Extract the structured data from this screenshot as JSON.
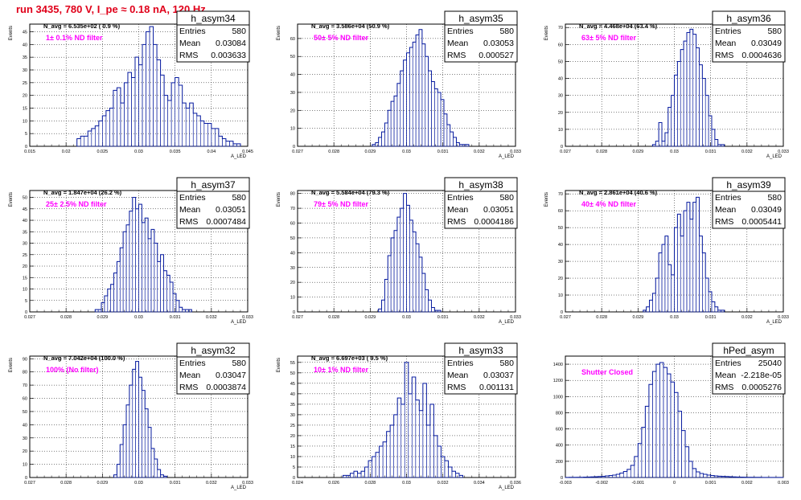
{
  "title": "run 3435,   780 V, I_pe ≈ 0.18 nA, 120 Hz",
  "chart_data": [
    {
      "type": "bar",
      "name": "h_asym34",
      "navg": "N_avg = 6.535e+02 ( 0.9 %)",
      "filter": "1± 0.1% ND filter",
      "stats": {
        "entries": "580",
        "mean": "0.03084",
        "rms": "0.003633"
      },
      "xlabel": "A_LED",
      "ylabel": "Events",
      "xlim": [
        0.015,
        0.045
      ],
      "ylim": [
        0,
        48
      ],
      "xticks": [
        "0.015",
        "0.02",
        "0.025",
        "0.03",
        "0.035",
        "0.04",
        "0.045"
      ],
      "yticks": [
        0,
        5,
        10,
        15,
        20,
        25,
        30,
        35,
        40,
        45
      ],
      "bin_start": 0.0215,
      "bin_width": 0.0005,
      "values": [
        3,
        4,
        4,
        6,
        7,
        8,
        10,
        12,
        14,
        15,
        22,
        23,
        17,
        25,
        29,
        27,
        35,
        32,
        40,
        45,
        47,
        40,
        34,
        28,
        20,
        18,
        25,
        27,
        24,
        17,
        15,
        17,
        13,
        12,
        10,
        9,
        9,
        7,
        7,
        4,
        3,
        2,
        2,
        1,
        1
      ]
    },
    {
      "type": "bar",
      "name": "h_asym35",
      "navg": "N_avg = 3.586e+04 (50.9 %)",
      "filter": "50± 5% ND filter",
      "stats": {
        "entries": "580",
        "mean": "0.03053",
        "rms": "0.000527"
      },
      "xlabel": "A_LED",
      "ylabel": "Events",
      "xlim": [
        0.0265,
        0.0335
      ],
      "ylim": [
        0,
        68
      ],
      "xticks": [
        "0.027",
        "0.028",
        "0.029",
        "0.03",
        "0.031",
        "0.032",
        "0.033"
      ],
      "yticks": [
        0,
        10,
        20,
        30,
        40,
        50,
        60
      ],
      "bin_start": 0.0289,
      "bin_width": 0.0001,
      "values": [
        1,
        2,
        5,
        8,
        13,
        20,
        25,
        28,
        35,
        42,
        48,
        52,
        55,
        58,
        62,
        65,
        57,
        50,
        42,
        36,
        32,
        30,
        26,
        18,
        12,
        8,
        5,
        2,
        1,
        1,
        1
      ]
    },
    {
      "type": "bar",
      "name": "h_asym36",
      "navg": "N_avg = 4.468e+04 (63.4 %)",
      "filter": "63± 5% ND filter",
      "stats": {
        "entries": "580",
        "mean": "0.03049",
        "rms": "0.0004636"
      },
      "xlabel": "A_LED",
      "ylabel": "Events",
      "xlim": [
        0.0265,
        0.0335
      ],
      "ylim": [
        0,
        72
      ],
      "xticks": [
        "0.027",
        "0.028",
        "0.029",
        "0.03",
        "0.031",
        "0.032",
        "0.033"
      ],
      "yticks": [
        0,
        10,
        20,
        30,
        40,
        50,
        60,
        70
      ],
      "bin_start": 0.0293,
      "bin_width": 0.0001,
      "values": [
        1,
        3,
        14,
        3,
        8,
        23,
        30,
        42,
        50,
        57,
        62,
        67,
        69,
        66,
        58,
        48,
        40,
        30,
        18,
        10,
        4,
        1,
        1
      ]
    },
    {
      "type": "bar",
      "name": "h_asym37",
      "navg": "N_avg = 1.847e+04 (26.2 %)",
      "filter": "25± 2.5% ND filter",
      "stats": {
        "entries": "580",
        "mean": "0.03051",
        "rms": "0.0007484"
      },
      "xlabel": "A_LED",
      "ylabel": "Events",
      "xlim": [
        0.0265,
        0.0335
      ],
      "ylim": [
        0,
        53
      ],
      "xticks": [
        "0.027",
        "0.028",
        "0.029",
        "0.03",
        "0.031",
        "0.032",
        "0.033"
      ],
      "yticks": [
        0,
        5,
        10,
        15,
        20,
        25,
        30,
        35,
        40,
        45,
        50
      ],
      "bin_start": 0.0286,
      "bin_width": 0.0001,
      "values": [
        1,
        1,
        4,
        7,
        10,
        12,
        17,
        22,
        28,
        35,
        38,
        44,
        50,
        45,
        47,
        39,
        41,
        32,
        36,
        30,
        22,
        25,
        18,
        16,
        13,
        8,
        5,
        2,
        1,
        1,
        1
      ]
    },
    {
      "type": "bar",
      "name": "h_asym38",
      "navg": "N_avg = 5.584e+04 (79.3 %)",
      "filter": "79± 5% ND filter",
      "stats": {
        "entries": "580",
        "mean": "0.03051",
        "rms": "0.0004186"
      },
      "xlabel": "A_LED",
      "ylabel": "Events",
      "xlim": [
        0.0265,
        0.0335
      ],
      "ylim": [
        0,
        82
      ],
      "xticks": [
        "0.027",
        "0.028",
        "0.029",
        "0.03",
        "0.031",
        "0.032",
        "0.033"
      ],
      "yticks": [
        0,
        10,
        20,
        30,
        40,
        50,
        60,
        70,
        80
      ],
      "bin_start": 0.0291,
      "bin_width": 0.0001,
      "values": [
        2,
        8,
        22,
        38,
        50,
        55,
        64,
        70,
        80,
        72,
        62,
        54,
        46,
        37,
        26,
        15,
        8,
        3,
        1,
        1
      ]
    },
    {
      "type": "bar",
      "name": "h_asym39",
      "navg": "N_avg = 2.861e+04 (40.6 %)",
      "filter": "40± 4% ND filter",
      "stats": {
        "entries": "580",
        "mean": "0.03049",
        "rms": "0.0005441"
      },
      "xlabel": "A_LED",
      "ylabel": "Events",
      "xlim": [
        0.0265,
        0.0335
      ],
      "ylim": [
        0,
        72
      ],
      "xticks": [
        "0.027",
        "0.028",
        "0.029",
        "0.03",
        "0.031",
        "0.032",
        "0.033"
      ],
      "yticks": [
        0,
        10,
        20,
        30,
        40,
        50,
        60,
        70
      ],
      "bin_start": 0.029,
      "bin_width": 0.0001,
      "values": [
        1,
        3,
        7,
        11,
        20,
        35,
        40,
        45,
        28,
        22,
        50,
        58,
        45,
        60,
        65,
        55,
        65,
        68,
        45,
        35,
        20,
        12,
        6,
        3,
        1,
        1
      ]
    },
    {
      "type": "bar",
      "name": "h_asym32",
      "navg": "N_avg = 7.042e+04 (100.0 %)",
      "filter": "100% (No filter)",
      "stats": {
        "entries": "580",
        "mean": "0.03047",
        "rms": "0.0003874"
      },
      "xlabel": "A_LED",
      "ylabel": "Events",
      "xlim": [
        0.0265,
        0.0335
      ],
      "ylim": [
        0,
        92
      ],
      "xticks": [
        "0.027",
        "0.028",
        "0.029",
        "0.03",
        "0.031",
        "0.032",
        "0.033"
      ],
      "yticks": [
        0,
        10,
        20,
        30,
        40,
        50,
        60,
        70,
        80,
        90
      ],
      "bin_start": 0.0292,
      "bin_width": 0.0001,
      "values": [
        2,
        10,
        25,
        40,
        55,
        70,
        82,
        88,
        76,
        66,
        52,
        38,
        22,
        14,
        6,
        2,
        1
      ]
    },
    {
      "type": "bar",
      "name": "h_asym33",
      "navg": "N_avg = 6.697e+03 ( 9.5 %)",
      "filter": "10± 1% ND filter",
      "stats": {
        "entries": "580",
        "mean": "0.03037",
        "rms": "0.001131"
      },
      "xlabel": "A_LED",
      "ylabel": "Events",
      "xlim": [
        0.024,
        0.036
      ],
      "ylim": [
        0,
        58
      ],
      "xticks": [
        "0.024",
        "0.026",
        "0.028",
        "0.03",
        "0.032",
        "0.034",
        "0.036"
      ],
      "yticks": [
        0,
        5,
        10,
        15,
        20,
        25,
        30,
        35,
        40,
        45,
        50,
        55
      ],
      "bin_start": 0.0265,
      "bin_width": 0.0002,
      "values": [
        1,
        1,
        2,
        3,
        2,
        3,
        5,
        8,
        10,
        12,
        15,
        17,
        22,
        25,
        30,
        38,
        35,
        55,
        40,
        48,
        37,
        32,
        45,
        25,
        35,
        20,
        15,
        10,
        8,
        5,
        3,
        2,
        1
      ]
    },
    {
      "type": "bar",
      "name": "hPed_asym",
      "navg": "",
      "filter": "Shutter Closed",
      "stats": {
        "entries": "25040",
        "mean": "-2.218e-05",
        "rms": "0.0005276"
      },
      "xlabel": "",
      "ylabel": "",
      "xlim": [
        -0.003,
        0.003
      ],
      "ylim": [
        0,
        1500
      ],
      "xticks": [
        "-0.003",
        "-0.002",
        "-0.001",
        "0",
        "0.001",
        "0.002",
        "0.003"
      ],
      "yticks": [
        0,
        200,
        400,
        600,
        800,
        1000,
        1200,
        1400
      ],
      "bin_start": -0.003,
      "bin_width": 0.0001,
      "values": [
        1,
        2,
        2,
        3,
        3,
        5,
        6,
        8,
        10,
        12,
        15,
        20,
        25,
        30,
        40,
        55,
        75,
        100,
        150,
        260,
        420,
        620,
        880,
        1150,
        1310,
        1400,
        1420,
        1360,
        1280,
        1180,
        1050,
        820,
        580,
        380,
        200,
        110,
        70,
        50,
        40,
        30,
        25,
        20,
        16,
        14,
        12,
        10,
        8,
        6,
        5,
        4,
        3,
        3,
        2,
        2,
        1,
        1,
        1,
        1,
        1,
        1
      ]
    }
  ]
}
